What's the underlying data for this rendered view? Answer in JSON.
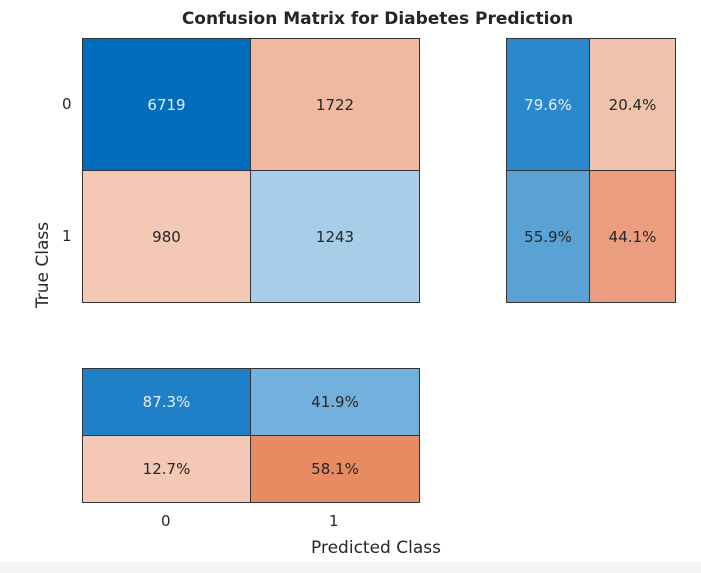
{
  "chart_data": {
    "type": "heatmap",
    "title": "Confusion Matrix for Diabetes Prediction",
    "xlabel": "Predicted Class",
    "ylabel": "True Class",
    "classes": [
      "0",
      "1"
    ],
    "matrix": [
      [
        6719,
        1722
      ],
      [
        980,
        1243
      ]
    ],
    "matrix_labels": [
      [
        "6719",
        "1722"
      ],
      [
        "980",
        "1243"
      ]
    ],
    "matrix_colors": [
      [
        "#006dbd",
        "#efb89f"
      ],
      [
        "#f3c8b5",
        "#a8cde8"
      ]
    ],
    "row_summary": [
      [
        "79.6%",
        "20.4%"
      ],
      [
        "55.9%",
        "44.1%"
      ]
    ],
    "row_summary_colors": [
      [
        "#2a88cc",
        "#f0c3ae"
      ],
      [
        "#5aa2d4",
        "#eb9e7f"
      ]
    ],
    "column_summary": [
      [
        "87.3%",
        "41.9%"
      ],
      [
        "12.7%",
        "58.1%"
      ]
    ],
    "column_summary_colors": [
      [
        "#1f80c8",
        "#72b1dd"
      ],
      [
        "#f3c9b6",
        "#e68b62"
      ]
    ]
  }
}
